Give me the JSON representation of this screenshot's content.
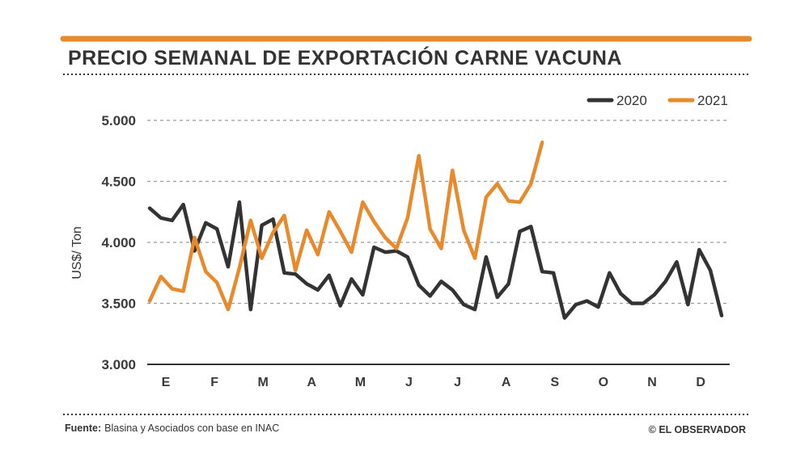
{
  "chart_data": {
    "type": "line",
    "title": "PRECIO SEMANAL DE EXPORTACIÓN CARNE VACUNA",
    "ylabel": "US$/ Ton",
    "xlabel": "",
    "ylim": [
      3000,
      5000
    ],
    "yticks": [
      3000,
      3500,
      4000,
      4500,
      5000
    ],
    "ytick_labels": [
      "3.000",
      "3.500",
      "4.000",
      "4.500",
      "5.000"
    ],
    "months": [
      "E",
      "F",
      "M",
      "A",
      "M",
      "J",
      "J",
      "A",
      "S",
      "O",
      "N",
      "D"
    ],
    "grid": true,
    "legend_position": "top-right",
    "series": [
      {
        "name": "2020",
        "color": "#333333",
        "values": [
          4280,
          4200,
          4180,
          4310,
          3930,
          4160,
          4110,
          3800,
          4330,
          3450,
          4140,
          4190,
          3750,
          3740,
          3660,
          3610,
          3730,
          3480,
          3700,
          3570,
          3960,
          3920,
          3930,
          3880,
          3650,
          3560,
          3680,
          3610,
          3490,
          3450,
          3880,
          3550,
          3660,
          4090,
          4130,
          3760,
          3750,
          3380,
          3490,
          3520,
          3470,
          3750,
          3580,
          3500,
          3500,
          3570,
          3680,
          3840,
          3490,
          3940,
          3770,
          3400
        ]
      },
      {
        "name": "2021",
        "color": "#e8892c",
        "values": [
          3520,
          3720,
          3620,
          3600,
          4040,
          3760,
          3670,
          3450,
          3790,
          4180,
          3870,
          4080,
          4220,
          3770,
          4100,
          3900,
          4250,
          4090,
          3920,
          4330,
          4170,
          4040,
          3950,
          4200,
          4710,
          4110,
          3950,
          4590,
          4100,
          3870,
          4370,
          4480,
          4340,
          4330,
          4480,
          4820
        ]
      }
    ]
  },
  "legend": {
    "label_2020": "2020",
    "label_2021": "2021"
  },
  "footer": {
    "source_label": "Fuente:",
    "source_text": "Blasina y Asociados con base en INAC",
    "credit": "© EL OBSERVADOR"
  },
  "colors": {
    "accent": "#e8892c",
    "dark": "#333333",
    "grid": "#9a9a9a"
  }
}
